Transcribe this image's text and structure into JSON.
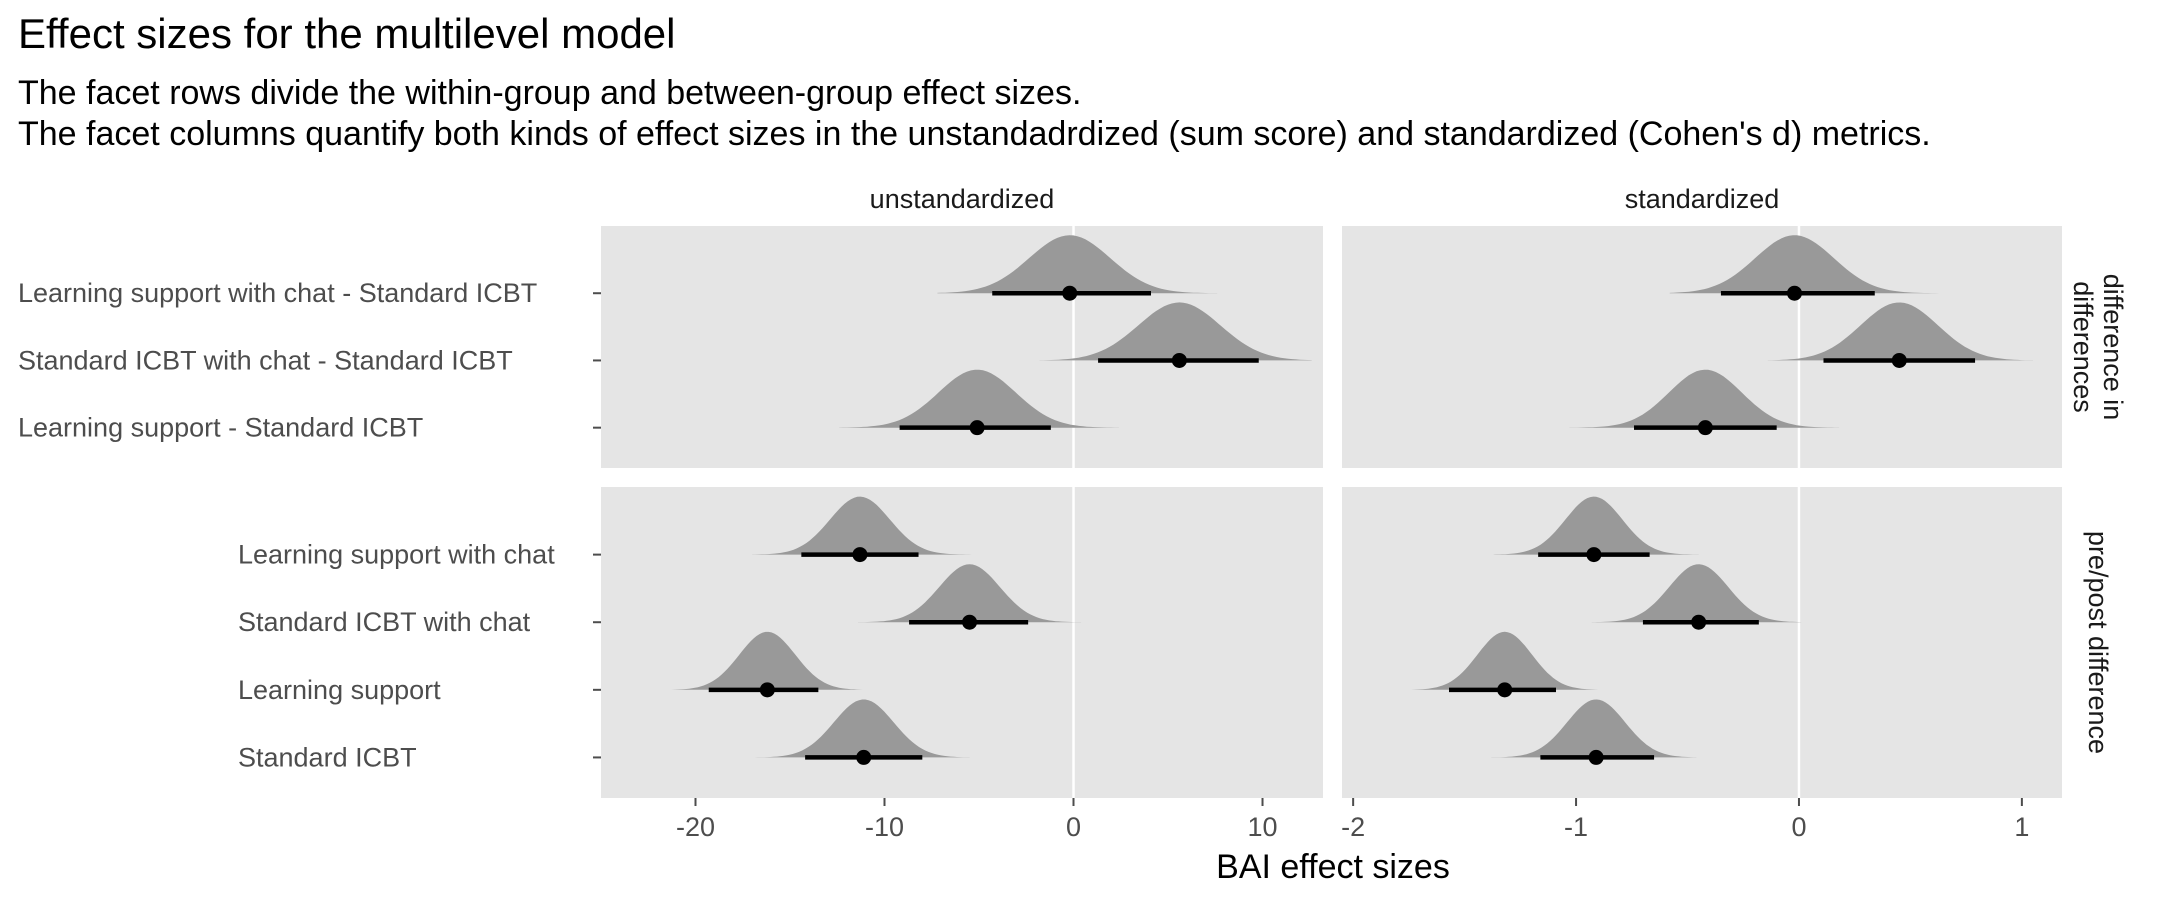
{
  "chart_data": {
    "type": "halfeye",
    "title": "Effect sizes for the multilevel model",
    "subtitle_lines": [
      "The facet rows divide the within-group and between-group effect sizes.",
      "The facet columns quantify both kinds of effect sizes in the unstandadrdized (sum score) and standardized (Cohen's d) metrics."
    ],
    "xlabel": "BAI effect sizes",
    "columns": [
      {
        "label": "unstandardized",
        "xlim": [
          -25,
          13.2
        ],
        "ticks": [
          -20,
          -10,
          0,
          10
        ],
        "tick_labels": [
          "-20",
          "-10",
          "0",
          "10"
        ]
      },
      {
        "label": "standardized",
        "xlim": [
          -2.05,
          1.18
        ],
        "ticks": [
          -2,
          -1,
          0,
          1
        ],
        "tick_labels": [
          "-2",
          "-1",
          "0",
          "1"
        ]
      }
    ],
    "rows": [
      {
        "label": "difference in differences",
        "label_lines": [
          "difference in",
          "differences"
        ],
        "categories": [
          "Learning support with chat - Standard ICBT",
          "Standard ICBT with chat - Standard ICBT",
          "Learning support - Standard ICBT"
        ],
        "panels": [
          [
            {
              "point": -0.2,
              "lower": -4.3,
              "upper": 4.1,
              "min": -7.2,
              "max": 7.6
            },
            {
              "point": 5.6,
              "lower": 1.3,
              "upper": 9.8,
              "min": -1.8,
              "max": 12.6
            },
            {
              "point": -5.1,
              "lower": -9.2,
              "upper": -1.2,
              "min": -12.4,
              "max": 2.4
            }
          ],
          [
            {
              "point": -0.02,
              "lower": -0.35,
              "upper": 0.34,
              "min": -0.58,
              "max": 0.63
            },
            {
              "point": 0.45,
              "lower": 0.11,
              "upper": 0.79,
              "min": -0.14,
              "max": 1.05
            },
            {
              "point": -0.42,
              "lower": -0.74,
              "upper": -0.1,
              "min": -1.03,
              "max": 0.18
            }
          ]
        ]
      },
      {
        "label": "pre/post difference",
        "label_lines": [
          "pre/post difference"
        ],
        "categories": [
          "Learning support with chat",
          "Standard ICBT with chat",
          "Learning support",
          "Standard ICBT"
        ],
        "panels": [
          [
            {
              "point": -11.3,
              "lower": -14.4,
              "upper": -8.2,
              "min": -17,
              "max": -5.2
            },
            {
              "point": -5.5,
              "lower": -8.7,
              "upper": -2.4,
              "min": -11.4,
              "max": 0.4
            },
            {
              "point": -16.2,
              "lower": -19.3,
              "upper": -13.5,
              "min": -21.9,
              "max": -11
            },
            {
              "point": -11.1,
              "lower": -14.2,
              "upper": -8,
              "min": -17.2,
              "max": -5.5
            }
          ],
          [
            {
              "point": -0.92,
              "lower": -1.17,
              "upper": -0.67,
              "min": -1.37,
              "max": -0.45
            },
            {
              "point": -0.45,
              "lower": -0.7,
              "upper": -0.18,
              "min": -0.93,
              "max": 0.01
            },
            {
              "point": -1.32,
              "lower": -1.57,
              "upper": -1.09,
              "min": -1.79,
              "max": -0.9
            },
            {
              "point": -0.91,
              "lower": -1.16,
              "upper": -0.65,
              "min": -1.38,
              "max": -0.46
            }
          ]
        ]
      }
    ],
    "colors": {
      "panel_background": "#e5e5e5",
      "gridline": "#ffffff",
      "density_fill": "#999999",
      "interval": "#000000",
      "axis_text": "#4d4d4d"
    },
    "grid": true,
    "legend": "none"
  }
}
